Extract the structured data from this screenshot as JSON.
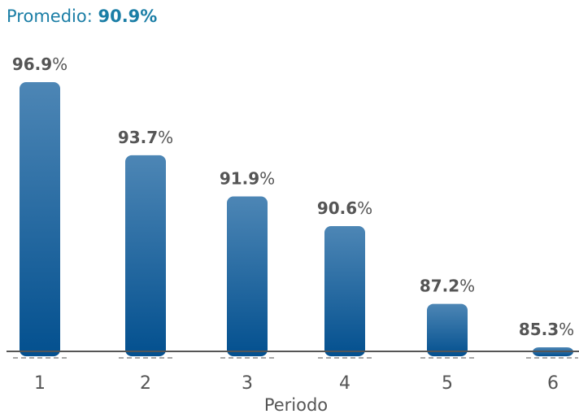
{
  "summary": {
    "label": "Promedio:",
    "value": "90.9%"
  },
  "colors": {
    "summary_text": "#1b7ea6",
    "bar_top": "#4d86b5",
    "bar_bottom": "#03508f",
    "label_text": "#555555",
    "axis": "#555555",
    "dash": "#8a8a8a"
  },
  "chart_data": {
    "type": "bar",
    "categories": [
      "1",
      "2",
      "3",
      "4",
      "5",
      "6"
    ],
    "values": [
      96.9,
      93.7,
      91.9,
      90.6,
      87.2,
      85.3
    ],
    "data_labels": [
      "96.9",
      "93.7",
      "91.9",
      "90.6",
      "87.2",
      "85.3"
    ],
    "value_suffix": "%",
    "xlabel": "Periodo",
    "ylabel": "",
    "title": "",
    "grid": false,
    "legend": "none"
  }
}
